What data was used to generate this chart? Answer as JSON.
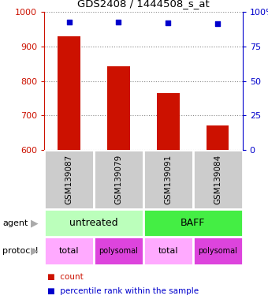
{
  "title": "GDS2408 / 1444508_s_at",
  "samples": [
    "GSM139087",
    "GSM139079",
    "GSM139091",
    "GSM139084"
  ],
  "bar_values": [
    930,
    843,
    764,
    672
  ],
  "bar_color": "#cc1100",
  "scatter_values": [
    93,
    92.5,
    92,
    91.5
  ],
  "scatter_color": "#0000cc",
  "ylim_left": [
    600,
    1000
  ],
  "ylim_right": [
    0,
    100
  ],
  "yticks_left": [
    600,
    700,
    800,
    900,
    1000
  ],
  "yticks_right": [
    0,
    25,
    50,
    75,
    100
  ],
  "ytick_right_labels": [
    "0",
    "25",
    "50",
    "75",
    "100%"
  ],
  "agent_blocks": [
    {
      "label": "untreated",
      "xstart": -0.5,
      "xend": 1.5,
      "color": "#bbffbb"
    },
    {
      "label": "BAFF",
      "xstart": 1.5,
      "xend": 3.5,
      "color": "#44ee44"
    }
  ],
  "protocol_blocks": [
    {
      "label": "total",
      "xstart": -0.5,
      "xend": 0.5,
      "color": "#ffaaff"
    },
    {
      "label": "polysomal",
      "xstart": 0.5,
      "xend": 1.5,
      "color": "#dd44dd"
    },
    {
      "label": "total",
      "xstart": 1.5,
      "xend": 2.5,
      "color": "#ffaaff"
    },
    {
      "label": "polysomal",
      "xstart": 2.5,
      "xend": 3.5,
      "color": "#dd44dd"
    }
  ],
  "sample_box_color": "#cccccc",
  "bar_width": 0.45,
  "legend_count_text": "count",
  "legend_pct_text": "percentile rank within the sample"
}
